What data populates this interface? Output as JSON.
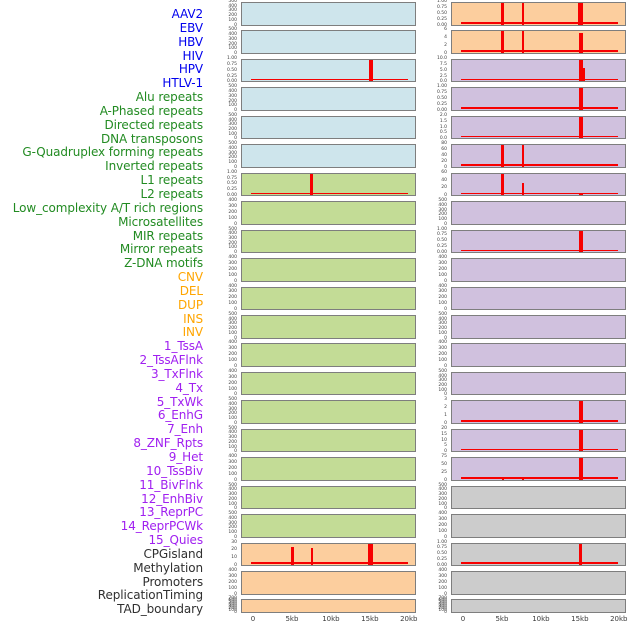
{
  "chart_data": {
    "type": "bar",
    "x_axis": {
      "unit": "kb",
      "ticks": [
        {
          "label": "0",
          "kb": 0
        },
        {
          "label": "5kb",
          "kb": 5
        },
        {
          "label": "10kb",
          "kb": 10
        },
        {
          "label": "15kb",
          "kb": 15
        },
        {
          "label": "20kb",
          "kb": 20
        }
      ]
    },
    "palette": {
      "panel": {
        "blue": "#CEE5EC",
        "green": "#C3DC96",
        "orange": "#FCCE9E",
        "purple": "#D0C1DE",
        "gray": "#CCCCCC"
      },
      "label": {
        "blue": "#0000EE",
        "green": "#228B22",
        "orange": "#FFA500",
        "purple": "#A020F0",
        "black": "#303030"
      },
      "spike": "#F70000",
      "border": "#7E7E7E"
    },
    "track_labels": [
      {
        "text": "AAV2",
        "color": "blue"
      },
      {
        "text": "EBV",
        "color": "blue"
      },
      {
        "text": "HBV",
        "color": "blue"
      },
      {
        "text": "HIV",
        "color": "blue"
      },
      {
        "text": "HPV",
        "color": "blue"
      },
      {
        "text": "HTLV-1",
        "color": "blue"
      },
      {
        "text": "Alu repeats",
        "color": "green"
      },
      {
        "text": "A-Phased repeats",
        "color": "green"
      },
      {
        "text": "Directed repeats",
        "color": "green"
      },
      {
        "text": "DNA transposons",
        "color": "green"
      },
      {
        "text": "G-Quadruplex forming repeats",
        "color": "green"
      },
      {
        "text": "Inverted repeats",
        "color": "green"
      },
      {
        "text": "L1 repeats",
        "color": "green"
      },
      {
        "text": "L2 repeats",
        "color": "green"
      },
      {
        "text": "Low_complexity A/T rich regions",
        "color": "green"
      },
      {
        "text": "Microsatellites",
        "color": "green"
      },
      {
        "text": "MIR repeats",
        "color": "green"
      },
      {
        "text": "Mirror repeats",
        "color": "green"
      },
      {
        "text": "Z-DNA motifs",
        "color": "green"
      },
      {
        "text": "CNV",
        "color": "orange"
      },
      {
        "text": "DEL",
        "color": "orange"
      },
      {
        "text": "DUP",
        "color": "orange"
      },
      {
        "text": "INS",
        "color": "orange"
      },
      {
        "text": "INV",
        "color": "orange"
      },
      {
        "text": "1_TssA",
        "color": "purple"
      },
      {
        "text": "2_TssAFlnk",
        "color": "purple"
      },
      {
        "text": "3_TxFlnk",
        "color": "purple"
      },
      {
        "text": "4_Tx",
        "color": "purple"
      },
      {
        "text": "5_TxWk",
        "color": "purple"
      },
      {
        "text": "6_EnhG",
        "color": "purple"
      },
      {
        "text": "7_Enh",
        "color": "purple"
      },
      {
        "text": "8_ZNF_Rpts",
        "color": "purple"
      },
      {
        "text": "9_Het",
        "color": "purple"
      },
      {
        "text": "10_TssBiv",
        "color": "purple"
      },
      {
        "text": "11_BivFlnk",
        "color": "purple"
      },
      {
        "text": "12_EnhBiv",
        "color": "purple"
      },
      {
        "text": "13_ReprPC",
        "color": "purple"
      },
      {
        "text": "14_ReprPCWk",
        "color": "purple"
      },
      {
        "text": "15_Quies",
        "color": "purple"
      },
      {
        "text": "CPGisland",
        "color": "black"
      },
      {
        "text": "Methylation",
        "color": "black"
      },
      {
        "text": "Promoters",
        "color": "black"
      },
      {
        "text": "ReplicationTiming",
        "color": "black"
      },
      {
        "text": "TAD_boundary",
        "color": "black"
      }
    ],
    "columns": {
      "left": [
        {
          "track": "AAV2",
          "bg": "blue",
          "yticks": [
            "500",
            "400",
            "300",
            "200",
            "100",
            "0"
          ],
          "spikes": [],
          "baseline": false
        },
        {
          "track": "EBV",
          "bg": "blue",
          "yticks": [
            "500",
            "400",
            "300",
            "200",
            "100",
            "0"
          ],
          "spikes": [],
          "baseline": false
        },
        {
          "track": "HBV",
          "bg": "blue",
          "yticks": [
            "1.00",
            "0.75",
            "0.50",
            "0.25",
            "0.00"
          ],
          "spikes": [
            {
              "kb": 15,
              "h": 100,
              "w": 4.5
            }
          ],
          "baseline": true
        },
        {
          "track": "HIV",
          "bg": "blue",
          "yticks": [
            "500",
            "400",
            "300",
            "200",
            "100",
            "0"
          ],
          "spikes": [],
          "baseline": false
        },
        {
          "track": "HPV",
          "bg": "blue",
          "yticks": [
            "500",
            "400",
            "300",
            "200",
            "100",
            "0"
          ],
          "spikes": [],
          "baseline": false
        },
        {
          "track": "HTLV-1",
          "bg": "blue",
          "yticks": [
            "500",
            "400",
            "300",
            "200",
            "100",
            "0"
          ],
          "spikes": [],
          "baseline": false
        },
        {
          "track": "Alu repeats",
          "bg": "green",
          "yticks": [
            "1.00",
            "0.75",
            "0.50",
            "0.25",
            "0.00"
          ],
          "spikes": [
            {
              "kb": 7.4,
              "h": 100,
              "w": 3
            }
          ],
          "baseline": true
        },
        {
          "track": "A-Phased repeats",
          "bg": "green",
          "yticks": [
            "400",
            "300",
            "200",
            "100",
            "0"
          ],
          "spikes": [],
          "baseline": false
        },
        {
          "track": "Directed repeats",
          "bg": "green",
          "yticks": [
            "500",
            "400",
            "300",
            "200",
            "100",
            "0"
          ],
          "spikes": [],
          "baseline": false
        },
        {
          "track": "DNA transposons",
          "bg": "green",
          "yticks": [
            "400",
            "300",
            "200",
            "100",
            "0"
          ],
          "spikes": [],
          "baseline": false
        },
        {
          "track": "G-Quadruplex forming repeats",
          "bg": "green",
          "yticks": [
            "400",
            "300",
            "200",
            "100",
            "0"
          ],
          "spikes": [],
          "baseline": false
        },
        {
          "track": "Inverted repeats",
          "bg": "green",
          "yticks": [
            "500",
            "400",
            "300",
            "200",
            "100",
            "0"
          ],
          "spikes": [],
          "baseline": false
        },
        {
          "track": "L1 repeats",
          "bg": "green",
          "yticks": [
            "400",
            "300",
            "200",
            "100",
            "0"
          ],
          "spikes": [],
          "baseline": false
        },
        {
          "track": "L2 repeats",
          "bg": "green",
          "yticks": [
            "400",
            "300",
            "200",
            "100",
            "0"
          ],
          "spikes": [],
          "baseline": false
        },
        {
          "track": "Low_complexity A/T rich regions",
          "bg": "green",
          "yticks": [
            "500",
            "400",
            "300",
            "200",
            "100",
            "0"
          ],
          "spikes": [],
          "baseline": false
        },
        {
          "track": "Microsatellites",
          "bg": "green",
          "yticks": [
            "500",
            "400",
            "300",
            "200",
            "100",
            "0"
          ],
          "spikes": [],
          "baseline": false
        },
        {
          "track": "MIR repeats",
          "bg": "green",
          "yticks": [
            "400",
            "300",
            "200",
            "100",
            "0"
          ],
          "spikes": [],
          "baseline": false
        },
        {
          "track": "Mirror repeats",
          "bg": "green",
          "yticks": [
            "500",
            "400",
            "300",
            "200",
            "100",
            "0"
          ],
          "spikes": [],
          "baseline": false
        },
        {
          "track": "Z-DNA motifs",
          "bg": "green",
          "yticks": [
            "500",
            "400",
            "300",
            "200",
            "100",
            "0"
          ],
          "spikes": [],
          "baseline": false
        },
        {
          "track": "CNV",
          "bg": "orange",
          "yticks": [
            "30",
            "20",
            "10",
            "0"
          ],
          "spikes": [
            {
              "kb": 5,
              "h": 82,
              "w": 3
            },
            {
              "kb": 7.5,
              "h": 78,
              "w": 2
            },
            {
              "kb": 15,
              "h": 100,
              "w": 5
            }
          ],
          "baseline": true
        },
        {
          "track": "DEL",
          "bg": "orange",
          "yticks": [
            "400",
            "300",
            "200",
            "100",
            "0"
          ],
          "spikes": [],
          "baseline": false
        },
        {
          "track": "DUP",
          "bg": "orange",
          "yticks": [
            "700",
            "600",
            "500",
            "400",
            "300",
            "200",
            "100",
            "0"
          ],
          "spikes": [],
          "baseline": false
        }
      ],
      "right": [
        {
          "track": "INS",
          "bg": "orange",
          "yticks": [
            "1.00",
            "0.75",
            "0.50",
            "0.25",
            "0.00"
          ],
          "spikes": [
            {
              "kb": 5,
              "h": 100,
              "w": 3
            },
            {
              "kb": 7.6,
              "h": 100,
              "w": 2
            },
            {
              "kb": 15,
              "h": 100,
              "w": 5
            }
          ],
          "baseline": true
        },
        {
          "track": "INV",
          "bg": "orange",
          "yticks": [
            "6",
            "4",
            "2",
            "0"
          ],
          "spikes": [
            {
              "kb": 5,
              "h": 100,
              "w": 3
            },
            {
              "kb": 7.6,
              "h": 100,
              "w": 2
            },
            {
              "kb": 15,
              "h": 95,
              "w": 4.5
            }
          ],
          "baseline": true
        },
        {
          "track": "1_TssA",
          "bg": "purple",
          "yticks": [
            "10.0",
            "7.5",
            "5.0",
            "2.5",
            "0.0"
          ],
          "spikes": [
            {
              "kb": 15,
              "h": 100,
              "w": 4
            },
            {
              "kb": 15.45,
              "h": 62,
              "w": 2
            }
          ],
          "baseline": true
        },
        {
          "track": "2_TssAFlnk",
          "bg": "purple",
          "yticks": [
            "1.00",
            "0.75",
            "0.50",
            "0.25",
            "0.00"
          ],
          "spikes": [
            {
              "kb": 15,
              "h": 100,
              "w": 4
            }
          ],
          "baseline": true
        },
        {
          "track": "3_TxFlnk",
          "bg": "purple",
          "yticks": [
            "2.0",
            "1.5",
            "1.0",
            "0.5",
            "0.0"
          ],
          "spikes": [
            {
              "kb": 15,
              "h": 100,
              "w": 4
            }
          ],
          "baseline": true
        },
        {
          "track": "4_Tx",
          "bg": "purple",
          "yticks": [
            "80",
            "60",
            "40",
            "20",
            "0"
          ],
          "spikes": [
            {
              "kb": 5,
              "h": 100,
              "w": 3
            },
            {
              "kb": 7.6,
              "h": 100,
              "w": 2
            }
          ],
          "baseline": true
        },
        {
          "track": "5_TxWk",
          "bg": "purple",
          "yticks": [
            "60",
            "40",
            "20",
            "0"
          ],
          "spikes": [
            {
              "kb": 5,
              "h": 100,
              "w": 3
            },
            {
              "kb": 7.6,
              "h": 58,
              "w": 2
            },
            {
              "kb": 15,
              "h": 10,
              "w": 4
            }
          ],
          "baseline": true
        },
        {
          "track": "6_EnhG",
          "bg": "purple",
          "yticks": [
            "500",
            "400",
            "300",
            "200",
            "100",
            "0"
          ],
          "spikes": [],
          "baseline": false
        },
        {
          "track": "7_Enh",
          "bg": "purple",
          "yticks": [
            "1.00",
            "0.75",
            "0.50",
            "0.25",
            "0.00"
          ],
          "spikes": [
            {
              "kb": 15,
              "h": 100,
              "w": 4
            }
          ],
          "baseline": true
        },
        {
          "track": "8_ZNF_Rpts",
          "bg": "purple",
          "yticks": [
            "400",
            "300",
            "200",
            "100",
            "0"
          ],
          "spikes": [],
          "baseline": false
        },
        {
          "track": "9_Het",
          "bg": "purple",
          "yticks": [
            "400",
            "300",
            "200",
            "100",
            "0"
          ],
          "spikes": [],
          "baseline": false
        },
        {
          "track": "10_TssBiv",
          "bg": "purple",
          "yticks": [
            "500",
            "400",
            "300",
            "200",
            "100",
            "0"
          ],
          "spikes": [],
          "baseline": false
        },
        {
          "track": "11_BivFlnk",
          "bg": "purple",
          "yticks": [
            "400",
            "300",
            "200",
            "100",
            "0"
          ],
          "spikes": [],
          "baseline": false
        },
        {
          "track": "12_EnhBiv",
          "bg": "purple",
          "yticks": [
            "500",
            "400",
            "300",
            "200",
            "100",
            "0"
          ],
          "spikes": [],
          "baseline": false
        },
        {
          "track": "13_ReprPC",
          "bg": "purple",
          "yticks": [
            "3",
            "2",
            "1",
            "0"
          ],
          "spikes": [
            {
              "kb": 15,
              "h": 100,
              "w": 4
            }
          ],
          "baseline": true
        },
        {
          "track": "14_ReprPCWk",
          "bg": "purple",
          "yticks": [
            "20",
            "15",
            "10",
            "5",
            "0"
          ],
          "spikes": [
            {
              "kb": 15,
              "h": 100,
              "w": 4
            }
          ],
          "baseline": true
        },
        {
          "track": "15_Quies",
          "bg": "purple",
          "yticks": [
            "75",
            "50",
            "25",
            "0"
          ],
          "spikes": [
            {
              "kb": 5,
              "h": 8,
              "w": 2
            },
            {
              "kb": 7.6,
              "h": 6,
              "w": 2
            },
            {
              "kb": 15,
              "h": 100,
              "w": 4
            }
          ],
          "baseline": true
        },
        {
          "track": "CPGisland",
          "bg": "gray",
          "yticks": [
            "500",
            "400",
            "300",
            "200",
            "100",
            "0"
          ],
          "spikes": [],
          "baseline": false
        },
        {
          "track": "Methylation",
          "bg": "gray",
          "yticks": [
            "400",
            "300",
            "200",
            "100",
            "0"
          ],
          "spikes": [],
          "baseline": false
        },
        {
          "track": "Promoters",
          "bg": "gray",
          "yticks": [
            "1.00",
            "0.75",
            "0.50",
            "0.25",
            "0.00"
          ],
          "spikes": [
            {
              "kb": 15,
              "h": 100,
              "w": 3
            }
          ],
          "baseline": true
        },
        {
          "track": "ReplicationTiming",
          "bg": "gray",
          "yticks": [
            "400",
            "300",
            "200",
            "100",
            "0"
          ],
          "spikes": [],
          "baseline": false
        },
        {
          "track": "TAD_boundary",
          "bg": "gray",
          "yticks": [
            "700",
            "600",
            "500",
            "400",
            "300",
            "200",
            "100",
            "0"
          ],
          "spikes": [],
          "baseline": false
        }
      ]
    }
  }
}
